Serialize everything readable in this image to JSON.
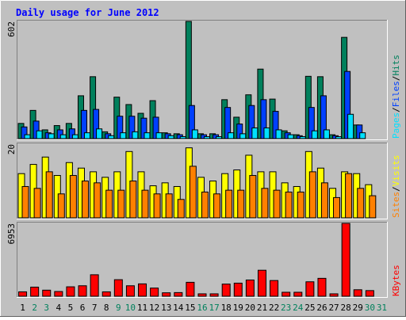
{
  "colors": {
    "background": "#C0C0C0",
    "title": "#0000FF",
    "hits": "#00805C",
    "files": "#0040FF",
    "pages": "#00E0FF",
    "visits": "#FFFF00",
    "sites": "#FF8000",
    "kbytes": "#FF0000",
    "weekend_day": "#00805C",
    "weekday": "#000000"
  },
  "chart_data": {
    "type": "bar",
    "title": "Daily usage for June 2012",
    "categories": [
      "1",
      "2",
      "3",
      "4",
      "5",
      "6",
      "7",
      "8",
      "9",
      "10",
      "11",
      "12",
      "13",
      "14",
      "15",
      "16",
      "17",
      "18",
      "19",
      "20",
      "21",
      "22",
      "23",
      "24",
      "25",
      "26",
      "27",
      "28",
      "29",
      "30",
      "31"
    ],
    "weekend_days": [
      "2",
      "3",
      "9",
      "10",
      "16",
      "17",
      "23",
      "24",
      "30",
      "31"
    ],
    "panels": [
      {
        "name": "pages-files-hits",
        "ymax_label": "602",
        "ylim": [
          0,
          602
        ],
        "legend": [
          "Pages",
          "/",
          "Files",
          "/",
          "Hits"
        ],
        "series": [
          {
            "name": "Hits",
            "color_key": "hits",
            "values": [
              78,
              145,
              45,
              67,
              78,
              220,
              318,
              35,
              213,
              175,
              130,
              195,
              30,
              25,
              602,
              25,
              25,
              200,
              110,
              225,
              357,
              203,
              40,
              20,
              320,
              318,
              20,
              520,
              70,
              0,
              0
            ]
          },
          {
            "name": "Files",
            "color_key": "files",
            "values": [
              60,
              90,
              30,
              45,
              50,
              145,
              150,
              25,
              115,
              115,
              105,
              110,
              25,
              20,
              170,
              20,
              20,
              160,
              75,
              170,
              200,
              140,
              30,
              15,
              160,
              220,
              15,
              345,
              70,
              0,
              0
            ]
          },
          {
            "name": "Pages",
            "color_key": "pages",
            "values": [
              20,
              40,
              25,
              20,
              20,
              30,
              50,
              15,
              30,
              35,
              30,
              30,
              15,
              10,
              45,
              10,
              10,
              30,
              25,
              55,
              55,
              45,
              20,
              10,
              40,
              45,
              10,
              125,
              30,
              0,
              0
            ]
          }
        ]
      },
      {
        "name": "sites-visits",
        "ymax_label": "20",
        "ylim": [
          0,
          20
        ],
        "legend": [
          "Sites",
          "/",
          "Visits"
        ],
        "series": [
          {
            "name": "Visits",
            "color_key": "visits",
            "values": [
              12,
              14.5,
              16.5,
              11.5,
              15,
              13.5,
              12.5,
              11,
              12.5,
              18,
              12.5,
              8.7,
              9.5,
              8.5,
              19,
              11,
              10,
              12,
              13,
              17,
              12.5,
              12.5,
              9.5,
              8.5,
              18,
              13.5,
              8,
              12.5,
              12,
              9,
              0
            ]
          },
          {
            "name": "Sites",
            "color_key": "sites",
            "values": [
              8.5,
              8,
              12.5,
              6.5,
              11.5,
              10,
              9.5,
              7.5,
              7.5,
              10,
              7.5,
              6.5,
              6.5,
              5,
              14,
              7,
              6.5,
              7.5,
              7.5,
              11.5,
              8,
              7.5,
              7,
              7,
              12.5,
              9.5,
              5.5,
              12,
              8,
              6,
              0
            ]
          }
        ]
      },
      {
        "name": "kbytes",
        "ymax_label": "6953",
        "ylim": [
          0,
          6953
        ],
        "legend": [
          "KBytes"
        ],
        "series": [
          {
            "name": "KBytes",
            "color_key": "kbytes",
            "values": [
              420,
              870,
              580,
              450,
              900,
              1000,
              2050,
              420,
              1580,
              1000,
              1180,
              780,
              330,
              350,
              1330,
              230,
              230,
              1160,
              1250,
              1550,
              2480,
              1500,
              380,
              380,
              1380,
              1710,
              230,
              6953,
              620,
              540,
              0
            ]
          }
        ]
      }
    ]
  }
}
